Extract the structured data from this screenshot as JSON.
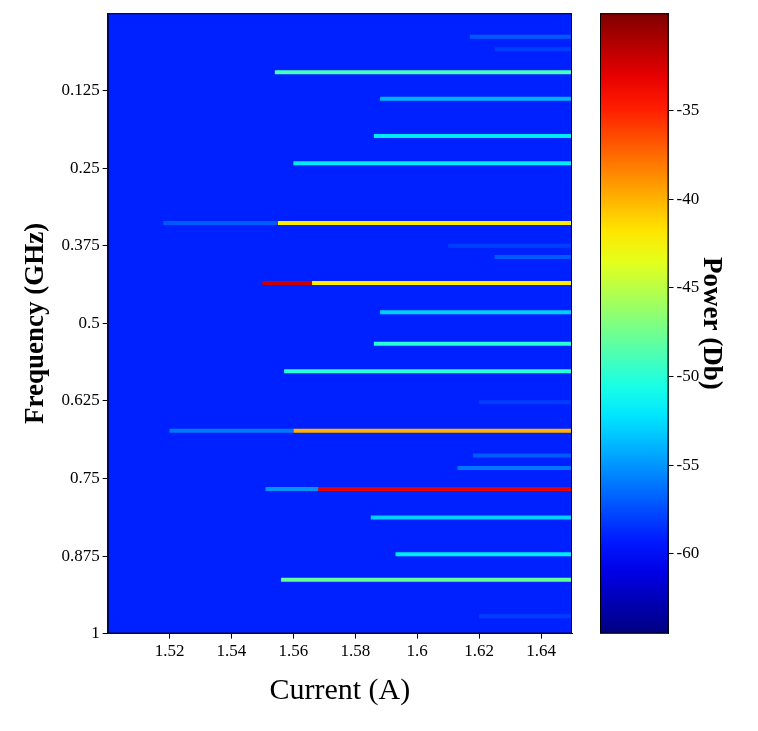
{
  "chart_data": {
    "type": "heatmap",
    "x_label": "Current (A)",
    "y_label": "Frequency (GHz)",
    "xlim": [
      1.5,
      1.65
    ],
    "xticks": [
      1.52,
      1.54,
      1.56,
      1.58,
      1.6,
      1.62,
      1.64
    ],
    "ylim": [
      0,
      1
    ],
    "yticks": [
      0.125,
      0.25,
      0.375,
      0.5,
      0.625,
      0.75,
      0.875,
      1
    ],
    "grid": false,
    "colorbar": {
      "label": "Power (Db)",
      "range": [
        -64.5,
        -29.5
      ],
      "ticks": [
        -35,
        -40,
        -45,
        -50,
        -55,
        -60
      ]
    },
    "background_power": -59,
    "lines": [
      {
        "frequency": 0.038,
        "current": [
          1.617,
          1.65
        ],
        "power": -57
      },
      {
        "frequency": 0.058,
        "current": [
          1.625,
          1.65
        ],
        "power": -58
      },
      {
        "frequency": 0.095,
        "current": [
          1.554,
          1.65
        ],
        "power": -49
      },
      {
        "frequency": 0.138,
        "current": [
          1.588,
          1.65
        ],
        "power": -54
      },
      {
        "frequency": 0.198,
        "current": [
          1.586,
          1.65
        ],
        "power": -52
      },
      {
        "frequency": 0.242,
        "current": [
          1.56,
          1.65
        ],
        "power": -52
      },
      {
        "frequency": 0.338,
        "current": [
          1.518,
          1.555
        ],
        "power": -57
      },
      {
        "frequency": 0.338,
        "current": [
          1.555,
          1.65
        ],
        "power": -42
      },
      {
        "frequency": 0.375,
        "current": [
          1.61,
          1.65
        ],
        "power": -58
      },
      {
        "frequency": 0.393,
        "current": [
          1.625,
          1.65
        ],
        "power": -57
      },
      {
        "frequency": 0.435,
        "current": [
          1.55,
          1.566
        ],
        "power": -32
      },
      {
        "frequency": 0.435,
        "current": [
          1.566,
          1.65
        ],
        "power": -42
      },
      {
        "frequency": 0.482,
        "current": [
          1.588,
          1.65
        ],
        "power": -53
      },
      {
        "frequency": 0.533,
        "current": [
          1.586,
          1.65
        ],
        "power": -50
      },
      {
        "frequency": 0.577,
        "current": [
          1.557,
          1.65
        ],
        "power": -50
      },
      {
        "frequency": 0.627,
        "current": [
          1.62,
          1.65
        ],
        "power": -58
      },
      {
        "frequency": 0.673,
        "current": [
          1.52,
          1.56
        ],
        "power": -56
      },
      {
        "frequency": 0.673,
        "current": [
          1.56,
          1.65
        ],
        "power": -40
      },
      {
        "frequency": 0.713,
        "current": [
          1.618,
          1.65
        ],
        "power": -57
      },
      {
        "frequency": 0.733,
        "current": [
          1.613,
          1.65
        ],
        "power": -56
      },
      {
        "frequency": 0.767,
        "current": [
          1.551,
          1.568
        ],
        "power": -55
      },
      {
        "frequency": 0.767,
        "current": [
          1.568,
          1.65
        ],
        "power": -33
      },
      {
        "frequency": 0.813,
        "current": [
          1.585,
          1.65
        ],
        "power": -53
      },
      {
        "frequency": 0.872,
        "current": [
          1.593,
          1.65
        ],
        "power": -52
      },
      {
        "frequency": 0.913,
        "current": [
          1.556,
          1.65
        ],
        "power": -48
      },
      {
        "frequency": 0.972,
        "current": [
          1.62,
          1.65
        ],
        "power": -58
      }
    ]
  }
}
